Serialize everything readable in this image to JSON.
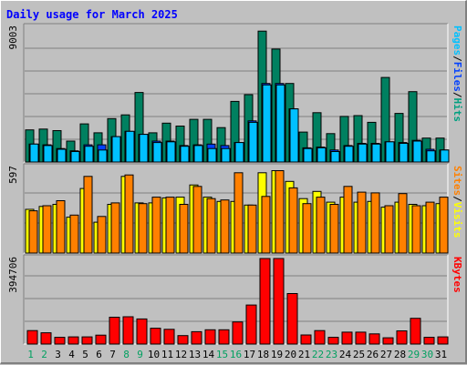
{
  "chart_data": {
    "type": "bar",
    "title": "Daily usage for March 2025",
    "categories": [
      "1",
      "2",
      "3",
      "4",
      "5",
      "6",
      "7",
      "8",
      "9",
      "10",
      "11",
      "12",
      "13",
      "14",
      "15",
      "16",
      "17",
      "18",
      "19",
      "20",
      "21",
      "22",
      "23",
      "24",
      "25",
      "26",
      "27",
      "28",
      "29",
      "30",
      "31"
    ],
    "weekend_days": [
      1,
      2,
      8,
      9,
      15,
      16,
      22,
      23,
      29,
      30
    ],
    "panels": [
      {
        "id": "hits",
        "max_label": "9003",
        "ylim": [
          0,
          9003
        ],
        "side_labels": [
          {
            "text": "Pages",
            "color": "#00c0ff"
          },
          {
            "text": "/",
            "color": "#000000"
          },
          {
            "text": "Files",
            "color": "#0040ff"
          },
          {
            "text": "/",
            "color": "#000000"
          },
          {
            "text": "Hits",
            "color": "#00a080"
          }
        ],
        "series": [
          {
            "name": "Hits",
            "color": "#008060",
            "values": [
              2150,
              2200,
              2100,
              1400,
              2550,
              1950,
              2900,
              3150,
              4650,
              1950,
              2600,
              2400,
              2850,
              2850,
              2300,
              4050,
              4500,
              8750,
              7550,
              5250,
              2000,
              3300,
              1900,
              3050,
              3100,
              2650,
              5650,
              3250,
              4700,
              1600,
              1600
            ]
          },
          {
            "name": "Files",
            "color": "#0040ff",
            "values": [
              1200,
              1150,
              900,
              750,
              1150,
              1150,
              1700,
              2050,
              1850,
              1400,
              1400,
              1100,
              1150,
              1200,
              1100,
              1300,
              2750,
              5250,
              5250,
              3550,
              950,
              1000,
              800,
              1100,
              1250,
              1250,
              1350,
              1300,
              1450,
              850,
              800
            ]
          },
          {
            "name": "Pages",
            "color": "#00c0ff",
            "values": [
              1200,
              1100,
              850,
              700,
              1050,
              800,
              1700,
              2050,
              1850,
              1300,
              1350,
              1050,
              1100,
              900,
              900,
              1300,
              2650,
              5150,
              5150,
              3550,
              900,
              950,
              700,
              1050,
              1200,
              1200,
              1350,
              1250,
              1400,
              750,
              800
            ]
          }
        ]
      },
      {
        "id": "visits",
        "max_label": "597",
        "ylim": [
          0,
          597
        ],
        "side_labels": [
          {
            "text": "Sites",
            "color": "#ff8000"
          },
          {
            "text": "/",
            "color": "#000000"
          },
          {
            "text": "Visits",
            "color": "#ffff00"
          }
        ],
        "series": [
          {
            "name": "Visits",
            "color": "#ffff00",
            "values": [
              305,
              325,
              340,
              250,
              450,
              215,
              340,
              535,
              350,
              350,
              385,
              390,
              475,
              390,
              360,
              360,
              335,
              560,
              575,
              500,
              380,
              430,
              355,
              390,
              355,
              360,
              320,
              355,
              340,
              330,
              345
            ]
          },
          {
            "name": "Sites",
            "color": "#ff8000",
            "values": [
              295,
              330,
              365,
              265,
              535,
              255,
              350,
              545,
              345,
              390,
              390,
              340,
              465,
              380,
              370,
              560,
              335,
              395,
              575,
              455,
              345,
              390,
              340,
              465,
              425,
              420,
              330,
              415,
              330,
              355,
              390
            ]
          }
        ]
      },
      {
        "id": "kbytes",
        "max_label": "394706",
        "ylim": [
          0,
          394706
        ],
        "side_labels": [
          {
            "text": "KBytes",
            "color": "#ff0000"
          }
        ],
        "series": [
          {
            "name": "KBytes",
            "color": "#ff0000",
            "values": [
              62000,
              52000,
              31000,
              33000,
              33000,
              41000,
              124000,
              126000,
              116000,
              73000,
              68000,
              39000,
              57000,
              66000,
              66000,
              102000,
              180000,
              394706,
              394706,
              233000,
              42000,
              62000,
              31000,
              55000,
              55000,
              47000,
              29000,
              61000,
              119000,
              31000,
              33000
            ]
          }
        ]
      }
    ]
  }
}
